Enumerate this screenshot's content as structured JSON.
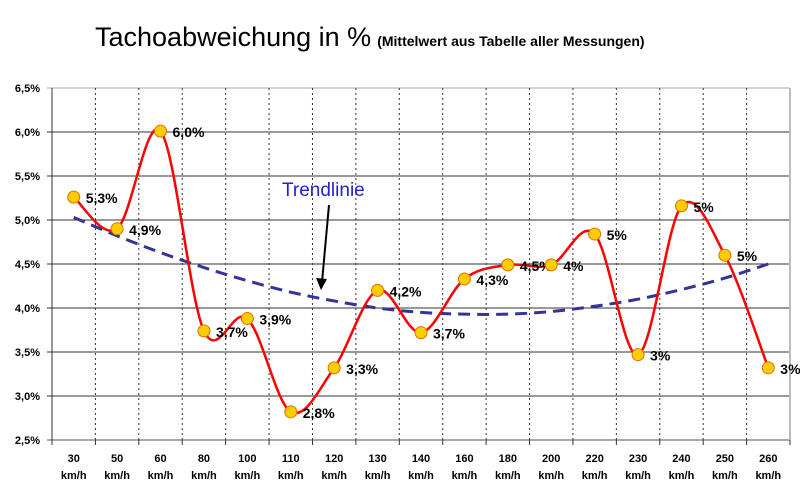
{
  "chart_data": {
    "type": "line",
    "title": "Tachoabweichung in %",
    "subtitle": "(Mittelwert aus Tabelle aller Messungen)",
    "xlabel": "",
    "ylabel": "",
    "categories": [
      "30",
      "50",
      "60",
      "80",
      "100",
      "110",
      "120",
      "130",
      "140",
      "160",
      "180",
      "200",
      "220",
      "230",
      "240",
      "250",
      "260"
    ],
    "category_unit": "km/h",
    "values": [
      5.26,
      4.9,
      6.01,
      3.74,
      3.88,
      2.82,
      3.32,
      4.2,
      3.72,
      4.33,
      4.49,
      4.49,
      4.84,
      3.47,
      5.16,
      4.6,
      3.32
    ],
    "data_labels": [
      "5,3%",
      "4,9%",
      "6,0%",
      "3,7%",
      "3,9%",
      "2,8%",
      "3,3%",
      "4,2%",
      "3,7%",
      "4,3%",
      "4,5%",
      "4%",
      "5%",
      "3%",
      "5%",
      "5%",
      "3%"
    ],
    "trendline": {
      "label": "Trendlinie",
      "type": "polynomial",
      "values": [
        5.03,
        4.82,
        4.63,
        4.46,
        4.31,
        4.18,
        4.08,
        4.0,
        3.95,
        3.93,
        3.93,
        3.96,
        4.02,
        4.1,
        4.21,
        4.34,
        4.5
      ],
      "color": "#333399"
    },
    "ylim": [
      2.5,
      6.5
    ],
    "yticks": [
      "2,5%",
      "3,0%",
      "3,5%",
      "4,0%",
      "4,5%",
      "5,0%",
      "5,5%",
      "6,0%",
      "6,5%"
    ],
    "grid": {
      "horizontal": "solid",
      "vertical": "dotted"
    },
    "series_color": "#ff0000",
    "marker_color": "#ffcc00",
    "legend": "none"
  }
}
